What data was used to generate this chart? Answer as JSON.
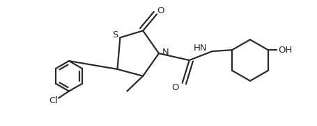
{
  "bg_color": "#ffffff",
  "line_color": "#2a2a2a",
  "line_width": 1.6,
  "font_size": 9.5,
  "figsize": [
    4.56,
    1.82
  ],
  "dpi": 100,
  "xlim": [
    0,
    4.56
  ],
  "ylim": [
    0,
    1.82
  ]
}
